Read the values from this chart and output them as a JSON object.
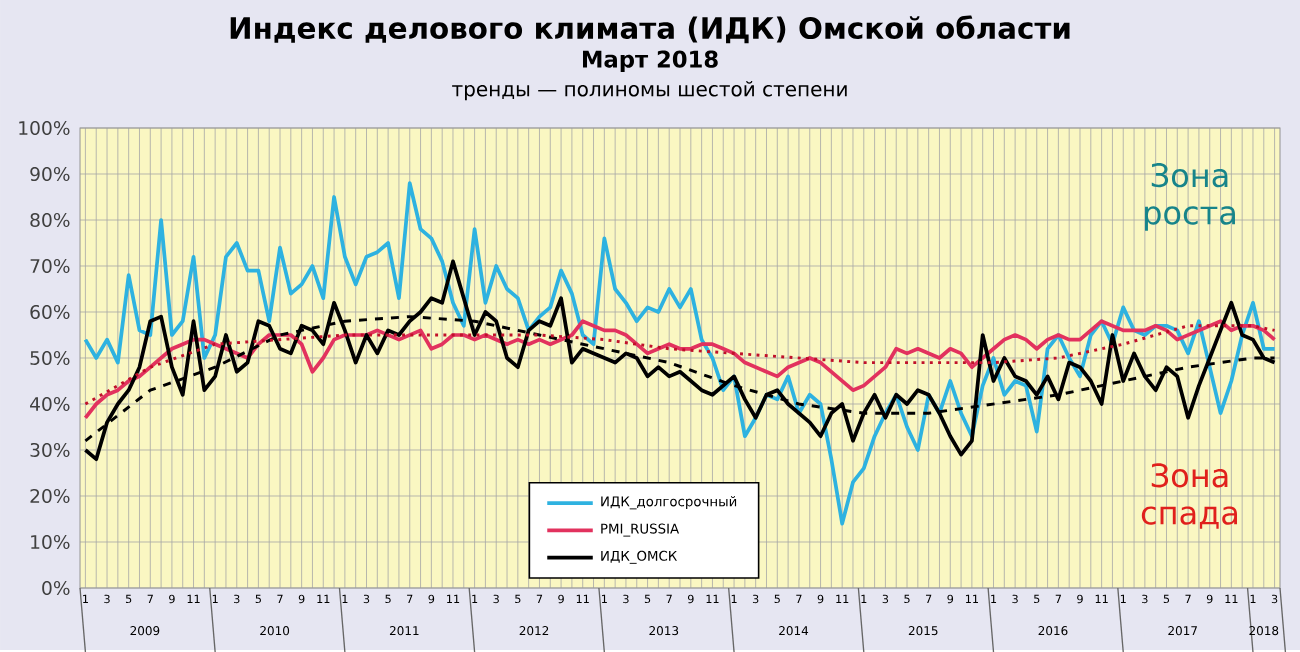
{
  "chart_data": {
    "type": "line",
    "title": "Индекс делового климата (ИДК) Омской области",
    "subtitle": "Март 2018",
    "annotations": [
      "тренды — полиномы шестой степени",
      "Зона роста",
      "Зона спада",
      "2009",
      "2010",
      "2011",
      "2012",
      "2013",
      "2014",
      "2015",
      "2016",
      "2017",
      "2018"
    ],
    "categories": [
      "1",
      null,
      "3",
      null,
      "5",
      null,
      "7",
      null,
      "9",
      null,
      "11",
      null,
      "1",
      null,
      "3",
      null,
      "5",
      null,
      "7",
      null,
      "9",
      null,
      "11",
      null,
      "1",
      null,
      "3",
      null,
      "5",
      null,
      "7",
      null,
      "9",
      null,
      "11",
      null,
      "1",
      null,
      "3",
      null,
      "5",
      null,
      "7",
      null,
      "9",
      null,
      "11",
      null,
      "1",
      null,
      "3",
      null,
      "5",
      null,
      "7",
      null,
      "9",
      null,
      "11",
      null,
      "1",
      null,
      "3",
      null,
      "5",
      null,
      "7",
      null,
      "9",
      null,
      "11",
      null,
      "1",
      null,
      "3",
      null,
      "5",
      null,
      "7",
      null,
      "9",
      null,
      "11",
      null,
      "1",
      null,
      "3",
      null,
      "5",
      null,
      "7",
      null,
      "9",
      null,
      "11",
      null,
      "1",
      null,
      "3",
      null,
      "5",
      null,
      "7",
      null,
      "9",
      null,
      "11",
      null,
      "1",
      null,
      "3"
    ],
    "series": [
      {
        "name": "ИДК_долгосрочный",
        "color": "#2eb2e0",
        "values": [
          54,
          50,
          54,
          49,
          68,
          56,
          55,
          80,
          55,
          58,
          72,
          50,
          55,
          72,
          75,
          69,
          69,
          58,
          74,
          64,
          66,
          70,
          63,
          85,
          72,
          66,
          72,
          73,
          75,
          63,
          88,
          78,
          76,
          71,
          62,
          57,
          78,
          62,
          70,
          65,
          63,
          56,
          59,
          61,
          69,
          64,
          55,
          53,
          76,
          65,
          62,
          58,
          61,
          60,
          65,
          61,
          65,
          54,
          50,
          43,
          46,
          33,
          37,
          42,
          41,
          46,
          38,
          42,
          40,
          28,
          14,
          23,
          26,
          33,
          38,
          42,
          35,
          30,
          42,
          38,
          45,
          38,
          33,
          44,
          50,
          42,
          45,
          44,
          34,
          52,
          55,
          50,
          46,
          55,
          58,
          53,
          61,
          56,
          55,
          57,
          57,
          56,
          51,
          58,
          48,
          38,
          45,
          55,
          62,
          52,
          52
        ]
      },
      {
        "name": "PMI_RUSSIA",
        "color": "#e2325e",
        "values": [
          37,
          40,
          42,
          43,
          45,
          46,
          48,
          50,
          52,
          53,
          54,
          54,
          53,
          52,
          51,
          50,
          53,
          55,
          55,
          55,
          53,
          47,
          50,
          54,
          55,
          55,
          55,
          56,
          55,
          54,
          55,
          56,
          52,
          53,
          55,
          55,
          54,
          55,
          54,
          53,
          54,
          53,
          54,
          53,
          54,
          55,
          58,
          57,
          56,
          56,
          55,
          53,
          51,
          52,
          53,
          52,
          52,
          53,
          53,
          52,
          51,
          49,
          48,
          47,
          46,
          48,
          49,
          50,
          49,
          47,
          45,
          43,
          44,
          46,
          48,
          52,
          51,
          52,
          51,
          50,
          52,
          51,
          48,
          50,
          52,
          54,
          55,
          54,
          52,
          54,
          55,
          54,
          54,
          56,
          58,
          57,
          56,
          56,
          56,
          57,
          56,
          54,
          55,
          56,
          57,
          58,
          56,
          57,
          57,
          56,
          54
        ]
      },
      {
        "name": "ИДК_ОМСК",
        "color": "#000000",
        "values": [
          30,
          28,
          36,
          40,
          43,
          48,
          58,
          59,
          48,
          42,
          58,
          43,
          46,
          55,
          47,
          49,
          58,
          57,
          52,
          51,
          57,
          56,
          53,
          62,
          56,
          49,
          55,
          51,
          56,
          55,
          58,
          60,
          63,
          62,
          71,
          63,
          55,
          60,
          58,
          50,
          48,
          56,
          58,
          57,
          63,
          49,
          52,
          51,
          50,
          49,
          51,
          50,
          46,
          48,
          46,
          47,
          45,
          43,
          42,
          44,
          46,
          41,
          37,
          42,
          43,
          40,
          38,
          36,
          33,
          38,
          40,
          32,
          38,
          42,
          37,
          42,
          40,
          43,
          42,
          38,
          33,
          29,
          32,
          55,
          45,
          50,
          46,
          45,
          42,
          46,
          41,
          49,
          48,
          45,
          40,
          55,
          45,
          51,
          46,
          43,
          48,
          46,
          37,
          44,
          50,
          56,
          62,
          55,
          54,
          50,
          49
        ]
      },
      {
        "color": "#000000",
        "line_style": "dashed",
        "values": [
          32,
          null,
          null,
          null,
          null,
          null,
          43,
          null,
          null,
          null,
          null,
          null,
          48,
          null,
          null,
          null,
          null,
          null,
          55,
          null,
          null,
          null,
          null,
          null,
          58,
          null,
          null,
          null,
          null,
          null,
          59,
          null,
          null,
          null,
          null,
          null,
          58,
          null,
          null,
          null,
          null,
          null,
          55,
          null,
          null,
          null,
          null,
          null,
          52,
          null,
          null,
          null,
          null,
          null,
          49,
          null,
          null,
          null,
          null,
          null,
          44,
          null,
          null,
          null,
          null,
          null,
          40,
          null,
          null,
          null,
          null,
          null,
          38,
          null,
          null,
          null,
          null,
          null,
          38,
          null,
          null,
          null,
          null,
          null,
          40,
          null,
          null,
          null,
          null,
          null,
          42,
          null,
          null,
          null,
          null,
          null,
          45,
          null,
          null,
          null,
          null,
          null,
          48,
          null,
          null,
          null,
          null,
          null,
          50,
          null,
          50
        ]
      },
      {
        "color": "#c0102a",
        "line_style": "dotted",
        "values": [
          40,
          null,
          null,
          null,
          null,
          null,
          48,
          null,
          null,
          null,
          null,
          null,
          53,
          null,
          null,
          null,
          null,
          null,
          54,
          null,
          null,
          null,
          null,
          null,
          55,
          null,
          null,
          null,
          null,
          null,
          55,
          null,
          null,
          null,
          null,
          null,
          55,
          null,
          null,
          null,
          null,
          null,
          55,
          null,
          null,
          null,
          null,
          null,
          54,
          null,
          null,
          null,
          null,
          null,
          52,
          null,
          null,
          null,
          null,
          null,
          51,
          null,
          null,
          null,
          null,
          null,
          50,
          null,
          null,
          null,
          null,
          null,
          49,
          null,
          null,
          null,
          null,
          null,
          49,
          null,
          null,
          null,
          null,
          null,
          49,
          null,
          null,
          null,
          null,
          null,
          50,
          null,
          null,
          null,
          null,
          null,
          53,
          null,
          null,
          null,
          null,
          null,
          57,
          null,
          null,
          null,
          null,
          null,
          57,
          null,
          56
        ]
      }
    ],
    "ylim": [
      0,
      100
    ],
    "yticks": [
      {
        "value": 0,
        "label": "0%"
      },
      {
        "value": 10,
        "label": "10%"
      },
      {
        "value": 20,
        "label": "20%"
      },
      {
        "value": 30,
        "label": "30%"
      },
      {
        "value": 40,
        "label": "40%"
      },
      {
        "value": 50,
        "label": "50%"
      },
      {
        "value": 60,
        "label": "60%"
      },
      {
        "value": 70,
        "label": "70%"
      },
      {
        "value": 80,
        "label": "80%"
      },
      {
        "value": 90,
        "label": "90%"
      },
      {
        "value": 100,
        "label": "100%"
      }
    ],
    "grid": true,
    "legend": "bottom"
  }
}
